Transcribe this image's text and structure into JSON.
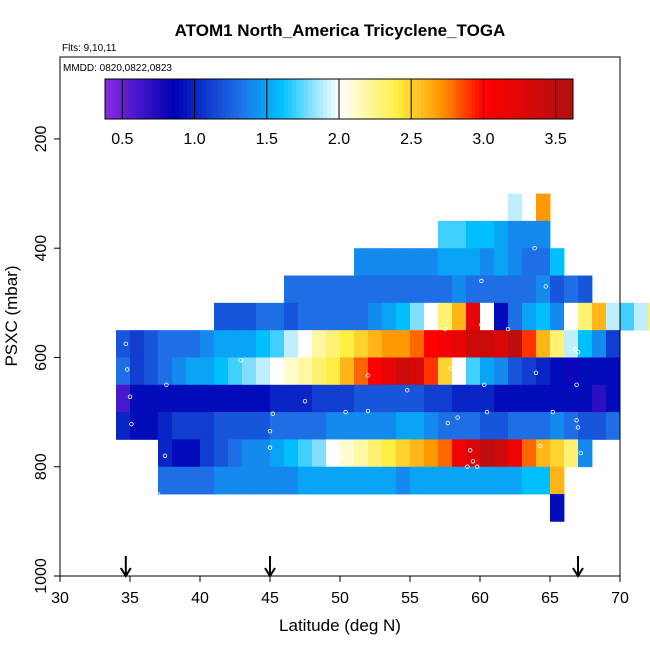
{
  "chart_data": {
    "type": "heatmap",
    "title": "ATOM1 North_America Tricyclene_TOGA",
    "annotations": {
      "flights": "Flts: 9,10,11",
      "dates": "MMDD: 0820,0822,0823"
    },
    "xlabel": "Latitude (deg N)",
    "ylabel": "PSXC (mbar)",
    "xlim": [
      30,
      70
    ],
    "ylim": [
      1000,
      50
    ],
    "y_reversed": true,
    "x_ticks": [
      "30",
      "35",
      "40",
      "45",
      "50",
      "55",
      "60",
      "65",
      "70"
    ],
    "y_ticks": [
      "200",
      "400",
      "600",
      "800",
      "1000"
    ],
    "colorbar": {
      "range": [
        0.38,
        3.62
      ],
      "ticks": [
        "0.5",
        "1.0",
        "1.5",
        "2.0",
        "2.5",
        "3.0",
        "3.5"
      ],
      "stops": [
        "#8a2be2",
        "#0000b4",
        "#1e6ee6",
        "#00bfff",
        "#ffffff",
        "#ffee44",
        "#ff9900",
        "#ff0000",
        "#b01010"
      ],
      "stop_values": [
        0.38,
        0.85,
        1.3,
        1.6,
        2.0,
        2.4,
        2.7,
        3.0,
        3.62
      ]
    },
    "cell_width_deg": 1.0,
    "cell_height_mbar": 50,
    "rows": [
      {
        "p": 325,
        "x0": 62,
        "values": [
          1.9,
          2.0,
          2.7
        ]
      },
      {
        "p": 375,
        "x0": 57,
        "values": [
          1.7,
          1.7,
          1.6,
          1.6,
          1.5,
          1.4,
          1.4,
          1.4
        ]
      },
      {
        "p": 425,
        "x0": 51,
        "values": [
          1.4,
          1.4,
          1.4,
          1.4,
          1.4,
          1.4,
          1.5,
          1.5,
          1.5,
          1.4,
          1.5,
          1.4,
          1.3,
          1.3,
          1.6
        ]
      },
      {
        "p": 475,
        "x0": 46,
        "values": [
          1.3,
          1.3,
          1.3,
          1.3,
          1.3,
          1.3,
          1.3,
          1.3,
          1.3,
          1.3,
          1.3,
          1.3,
          1.4,
          1.3,
          1.3,
          1.3,
          1.3,
          1.3,
          1.4,
          1.2,
          1.3,
          1.2
        ]
      },
      {
        "p": 525,
        "x0": 41,
        "values": [
          1.2,
          1.2,
          1.2,
          1.3,
          1.3,
          1.2,
          1.3,
          1.3,
          1.3,
          1.3,
          1.3,
          1.4,
          1.5,
          1.6,
          1.8,
          2.0,
          2.3,
          2.6,
          3.2,
          2.0,
          0.9,
          1.3,
          1.5,
          1.6,
          1.4,
          2.0,
          2.3,
          2.6,
          1.9,
          1.7,
          1.9,
          2.3,
          2.4,
          1.6
        ]
      },
      {
        "p": 575,
        "x0": 34,
        "values": [
          1.2,
          1.1,
          1.2,
          1.3,
          1.3,
          1.3,
          1.4,
          1.5,
          1.5,
          1.5,
          1.6,
          1.7,
          1.9,
          2.0,
          2.2,
          2.3,
          2.4,
          2.5,
          2.6,
          2.7,
          2.7,
          2.8,
          3.0,
          3.1,
          3.2,
          3.4,
          3.4,
          3.3,
          3.5,
          2.9,
          2.6,
          2.3,
          1.9,
          1.6,
          1.4,
          1.1
        ]
      },
      {
        "p": 625,
        "x0": 34,
        "values": [
          1.3,
          1.1,
          1.2,
          1.3,
          1.4,
          1.5,
          1.5,
          1.6,
          1.7,
          1.8,
          1.9,
          2.0,
          2.1,
          2.2,
          2.3,
          2.4,
          2.6,
          2.8,
          3.0,
          3.2,
          3.4,
          3.3,
          2.9,
          2.5,
          2.0,
          1.7,
          1.5,
          1.4,
          1.2,
          1.1,
          1.0,
          0.9,
          0.8,
          0.9,
          0.9,
          0.9
        ]
      },
      {
        "p": 675,
        "x0": 34,
        "values": [
          0.6,
          0.9,
          0.9,
          0.9,
          0.9,
          0.9,
          0.9,
          0.9,
          0.9,
          0.9,
          0.9,
          1.0,
          1.0,
          1.0,
          1.1,
          1.1,
          1.1,
          1.2,
          1.2,
          1.2,
          1.2,
          1.2,
          1.1,
          1.1,
          1.0,
          1.0,
          1.0,
          0.9,
          0.9,
          0.9,
          0.9,
          0.9,
          0.9,
          0.9,
          0.7,
          0.9
        ]
      },
      {
        "p": 725,
        "x0": 34,
        "values": [
          1.0,
          0.9,
          0.9,
          1.0,
          1.1,
          1.1,
          1.1,
          1.2,
          1.2,
          1.2,
          1.2,
          1.3,
          1.3,
          1.3,
          1.3,
          1.4,
          1.4,
          1.4,
          1.4,
          1.4,
          1.5,
          1.5,
          1.4,
          1.3,
          1.3,
          1.3,
          1.2,
          1.2,
          1.3,
          1.3,
          1.3,
          1.4,
          1.3,
          1.2,
          1.2,
          1.3
        ]
      },
      {
        "p": 775,
        "x0": 37,
        "values": [
          1.0,
          0.9,
          0.9,
          1.1,
          1.2,
          1.3,
          1.4,
          1.4,
          1.5,
          1.6,
          1.7,
          1.8,
          2.0,
          2.1,
          2.2,
          2.3,
          2.4,
          2.5,
          2.6,
          2.7,
          2.8,
          3.1,
          3.3,
          3.5,
          3.4,
          3.1,
          2.8,
          2.6,
          2.5,
          2.3,
          1.4
        ]
      },
      {
        "p": 825,
        "x0": 37,
        "values": [
          1.3,
          1.3,
          1.3,
          1.3,
          1.4,
          1.4,
          1.4,
          1.4,
          1.4,
          1.4,
          1.5,
          1.5,
          1.5,
          1.5,
          1.5,
          1.5,
          1.5,
          1.4,
          1.5,
          1.5,
          1.5,
          1.5,
          1.5,
          1.5,
          1.5,
          1.5,
          1.6,
          1.6,
          2.6
        ]
      },
      {
        "p": 875,
        "x0": 65,
        "values": [
          0.9
        ]
      }
    ],
    "points": [
      [
        34.7,
        575
      ],
      [
        34.8,
        622
      ],
      [
        35.0,
        672
      ],
      [
        35.1,
        722
      ],
      [
        37.6,
        650
      ],
      [
        37.5,
        780
      ],
      [
        37.0,
        850
      ],
      [
        42.9,
        605
      ],
      [
        45.0,
        735
      ],
      [
        45.0,
        765
      ],
      [
        45.2,
        703
      ],
      [
        47.5,
        680
      ],
      [
        50.1,
        780
      ],
      [
        50.4,
        700
      ],
      [
        52.0,
        633
      ],
      [
        52.0,
        698
      ],
      [
        54.8,
        660
      ],
      [
        57.9,
        620
      ],
      [
        57.7,
        720
      ],
      [
        57.5,
        548
      ],
      [
        58.4,
        710
      ],
      [
        59.3,
        770
      ],
      [
        59.5,
        790
      ],
      [
        59.8,
        800
      ],
      [
        59.1,
        800
      ],
      [
        60.1,
        460
      ],
      [
        60.1,
        540
      ],
      [
        60.3,
        650
      ],
      [
        60.5,
        700
      ],
      [
        62.0,
        548
      ],
      [
        63.9,
        400
      ],
      [
        64.0,
        628
      ],
      [
        64.3,
        762
      ],
      [
        64.7,
        470
      ],
      [
        65.2,
        700
      ],
      [
        65.3,
        910
      ],
      [
        66.5,
        545
      ],
      [
        66.8,
        585
      ],
      [
        66.9,
        650
      ],
      [
        66.9,
        715
      ],
      [
        67.0,
        728
      ],
      [
        67.2,
        775
      ],
      [
        67.0,
        590
      ]
    ],
    "flight_markers": [
      34.7,
      45.0,
      67.0
    ]
  }
}
